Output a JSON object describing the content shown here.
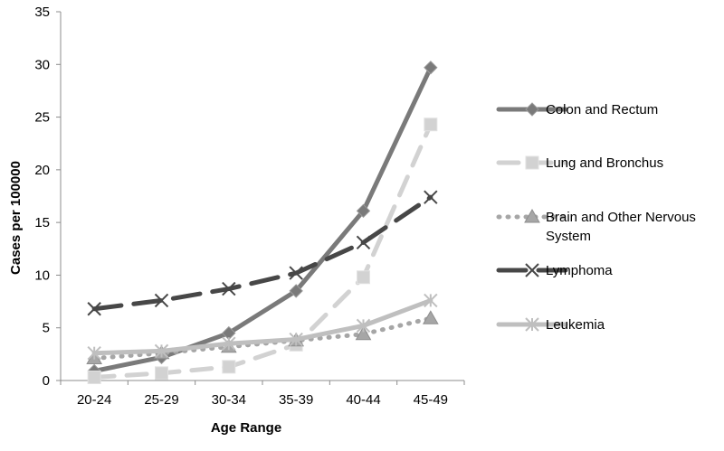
{
  "chart_data": {
    "type": "line",
    "title": "",
    "xlabel": "Age Range",
    "ylabel": "Cases per 100000",
    "categories": [
      "20-24",
      "25-29",
      "30-34",
      "35-39",
      "40-44",
      "45-49"
    ],
    "ylim": [
      0,
      35
    ],
    "yticks": [
      0,
      5,
      10,
      15,
      20,
      25,
      30,
      35
    ],
    "grid": false,
    "legend_position": "right",
    "series": [
      {
        "name": "Colon and Rectum",
        "values": [
          0.9,
          2.2,
          4.5,
          8.5,
          16.1,
          29.7
        ],
        "color": "#7a7a7a",
        "dash": "solid",
        "marker": "diamond"
      },
      {
        "name": "Lung and Bronchus",
        "values": [
          0.3,
          0.7,
          1.3,
          3.4,
          9.8,
          24.3
        ],
        "color": "#d2d2d2",
        "dash": "dashed",
        "marker": "square"
      },
      {
        "name": "Brain and Other Nervous System",
        "values": [
          2.1,
          2.6,
          3.2,
          3.8,
          4.4,
          5.9
        ],
        "color": "#a6a6a6",
        "dash": "dotted",
        "marker": "triangle"
      },
      {
        "name": "Lymphoma",
        "values": [
          6.8,
          7.6,
          8.7,
          10.2,
          13.1,
          17.4
        ],
        "color": "#474747",
        "dash": "longdash",
        "marker": "x"
      },
      {
        "name": "Leukemia",
        "values": [
          2.6,
          2.8,
          3.5,
          3.9,
          5.2,
          7.6
        ],
        "color": "#bfbfbf",
        "dash": "solid",
        "marker": "star"
      }
    ]
  }
}
